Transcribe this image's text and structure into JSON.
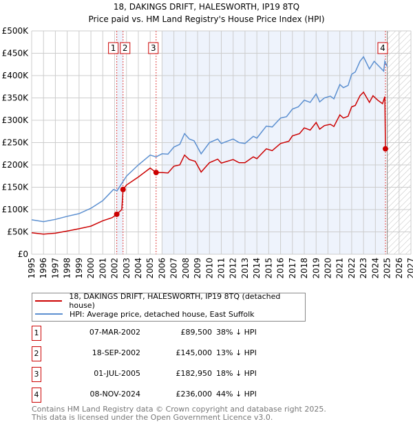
{
  "chart_data": {
    "type": "line",
    "title": "18, DAKINGS DRIFT, HALESWORTH, IP19 8TQ",
    "subtitle": "Price paid vs. HM Land Registry's House Price Index (HPI)",
    "xlim": [
      1995,
      2027
    ],
    "ylim": [
      0,
      500000
    ],
    "x_ticks": [
      "1995",
      "1996",
      "1997",
      "1998",
      "1999",
      "2000",
      "2001",
      "2002",
      "2003",
      "2004",
      "2005",
      "2006",
      "2007",
      "2008",
      "2009",
      "2010",
      "2011",
      "2012",
      "2013",
      "2014",
      "2015",
      "2016",
      "2017",
      "2018",
      "2019",
      "2020",
      "2021",
      "2022",
      "2023",
      "2024",
      "2025",
      "2026",
      "2027"
    ],
    "y_ticks": [
      {
        "v": 0,
        "label": "£0"
      },
      {
        "v": 50000,
        "label": "£50K"
      },
      {
        "v": 100000,
        "label": "£100K"
      },
      {
        "v": 150000,
        "label": "£150K"
      },
      {
        "v": 200000,
        "label": "£200K"
      },
      {
        "v": 250000,
        "label": "£250K"
      },
      {
        "v": 300000,
        "label": "£300K"
      },
      {
        "v": 350000,
        "label": "£350K"
      },
      {
        "v": 400000,
        "label": "£400K"
      },
      {
        "v": 450000,
        "label": "£450K"
      },
      {
        "v": 500000,
        "label": "£500K"
      }
    ],
    "grid": true,
    "shaded_ranges": [
      [
        2002.18,
        2002.71
      ],
      [
        2006.0,
        2024.85
      ]
    ],
    "forecast_from": 2025.0,
    "series": [
      {
        "name": "18, DAKINGS DRIFT, HALESWORTH, IP19 8TQ (detached house)",
        "color": "#cc0000",
        "x": [
          1995,
          1996,
          1997,
          1998,
          1999,
          2000,
          2001,
          2001.8,
          2002.18,
          2002.6,
          2002.71,
          2003,
          2004,
          2005,
          2005.5,
          2006,
          2006.5,
          2007,
          2007.5,
          2007.9,
          2008.3,
          2008.8,
          2009.3,
          2010,
          2010.7,
          2011,
          2012,
          2012.5,
          2013,
          2013.7,
          2014,
          2014.8,
          2015.3,
          2016,
          2016.7,
          2017,
          2017.6,
          2018,
          2018.5,
          2019,
          2019.3,
          2019.7,
          2020.2,
          2020.5,
          2021,
          2021.3,
          2021.7,
          2022,
          2022.3,
          2022.7,
          2023,
          2023.5,
          2023.8,
          2024.2,
          2024.6,
          2024.8,
          2024.85
        ],
        "y": [
          48000,
          45000,
          47000,
          52000,
          57000,
          63000,
          75000,
          82000,
          89500,
          100000,
          145000,
          155000,
          173000,
          193000,
          183000,
          183000,
          182000,
          197000,
          200000,
          222000,
          212000,
          208000,
          184000,
          205000,
          213000,
          204000,
          212000,
          205000,
          205000,
          218000,
          214000,
          236000,
          232000,
          248000,
          253000,
          265000,
          270000,
          283000,
          278000,
          295000,
          280000,
          288000,
          291000,
          286000,
          312000,
          305000,
          309000,
          330000,
          333000,
          355000,
          363000,
          340000,
          355000,
          345000,
          337000,
          353000,
          236000
        ]
      },
      {
        "name": "HPI: Average price, detached house, East Suffolk",
        "color": "#5b8fd0",
        "x": [
          1995,
          1996,
          1997,
          1998,
          1999,
          2000,
          2001,
          2001.9,
          2002.2,
          2003,
          2004,
          2005,
          2005.5,
          2006,
          2006.5,
          2007,
          2007.5,
          2007.9,
          2008.3,
          2008.7,
          2009.3,
          2010,
          2010.7,
          2011,
          2012,
          2012.5,
          2013,
          2013.7,
          2014,
          2014.8,
          2015.3,
          2016,
          2016.5,
          2017,
          2017.5,
          2018,
          2018.5,
          2019,
          2019.3,
          2019.7,
          2020.2,
          2020.5,
          2021,
          2021.3,
          2021.7,
          2022,
          2022.3,
          2022.7,
          2023,
          2023.5,
          2023.9,
          2024.3,
          2024.7,
          2024.8,
          2025.0
        ],
        "y": [
          77000,
          73000,
          78000,
          85000,
          91000,
          103000,
          120000,
          145000,
          142000,
          175000,
          200000,
          222000,
          218000,
          225000,
          224000,
          240000,
          246000,
          270000,
          258000,
          254000,
          225000,
          250000,
          258000,
          248000,
          258000,
          250000,
          248000,
          264000,
          260000,
          287000,
          285000,
          305000,
          308000,
          325000,
          330000,
          345000,
          340000,
          359000,
          341000,
          350000,
          354000,
          348000,
          380000,
          373000,
          378000,
          403000,
          408000,
          432000,
          442000,
          415000,
          432000,
          421000,
          410000,
          432000,
          420000
        ]
      }
    ],
    "sales": [
      {
        "n": "1",
        "x": 2002.18,
        "y": 89500
      },
      {
        "n": "2",
        "x": 2002.71,
        "y": 145000
      },
      {
        "n": "3",
        "x": 2005.5,
        "y": 182950
      },
      {
        "n": "4",
        "x": 2024.85,
        "y": 236000
      }
    ]
  },
  "legend": {
    "red": "18, DAKINGS DRIFT, HALESWORTH, IP19 8TQ (detached house)",
    "blue": "HPI: Average price, detached house, East Suffolk"
  },
  "table": [
    {
      "n": "1",
      "date": "07-MAR-2002",
      "price": "£89,500",
      "hpi": "38% ↓ HPI"
    },
    {
      "n": "2",
      "date": "18-SEP-2002",
      "price": "£145,000",
      "hpi": "13% ↓ HPI"
    },
    {
      "n": "3",
      "date": "01-JUL-2005",
      "price": "£182,950",
      "hpi": "18% ↓ HPI"
    },
    {
      "n": "4",
      "date": "08-NOV-2024",
      "price": "£236,000",
      "hpi": "44% ↓ HPI"
    }
  ],
  "footer": {
    "line1": "Contains HM Land Registry data © Crown copyright and database right 2025.",
    "line2": "This data is licensed under the Open Government Licence v3.0."
  }
}
